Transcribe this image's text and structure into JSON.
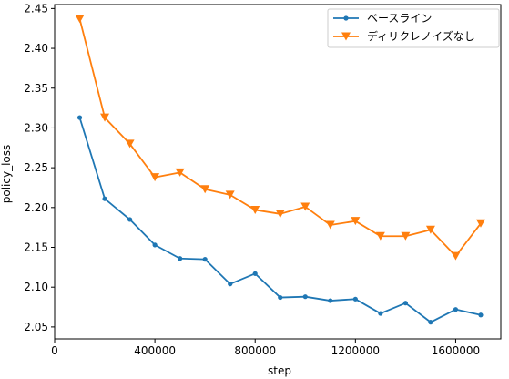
{
  "chart_data": {
    "type": "line",
    "title": "",
    "xlabel": "step",
    "ylabel": "policy_loss",
    "xlim": [
      0,
      1780000
    ],
    "ylim": [
      2.035,
      2.455
    ],
    "xticks": [
      0,
      400000,
      800000,
      1200000,
      1600000
    ],
    "xtick_labels": [
      "0",
      "400000",
      "800000",
      "1200000",
      "1600000"
    ],
    "yticks": [
      2.05,
      2.1,
      2.15,
      2.2,
      2.25,
      2.3,
      2.35,
      2.4,
      2.45
    ],
    "ytick_labels": [
      "2.05",
      "2.10",
      "2.15",
      "2.20",
      "2.25",
      "2.30",
      "2.35",
      "2.40",
      "2.45"
    ],
    "grid": false,
    "legend_position": "top-right",
    "x": [
      100000,
      200000,
      300000,
      400000,
      500000,
      600000,
      700000,
      800000,
      900000,
      1000000,
      1100000,
      1200000,
      1300000,
      1400000,
      1500000,
      1600000,
      1700000
    ],
    "series": [
      {
        "name": "ベースライン",
        "color": "#1f77b4",
        "marker": "circle",
        "values": [
          2.313,
          2.211,
          2.185,
          2.153,
          2.136,
          2.135,
          2.104,
          2.117,
          2.087,
          2.088,
          2.083,
          2.085,
          2.067,
          2.08,
          2.056,
          2.072,
          2.065
        ]
      },
      {
        "name": "ディリクレノイズなし",
        "color": "#ff7f0e",
        "marker": "triangle-down",
        "values": [
          2.437,
          2.313,
          2.28,
          2.238,
          2.244,
          2.223,
          2.216,
          2.197,
          2.192,
          2.201,
          2.178,
          2.183,
          2.164,
          2.164,
          2.172,
          2.139,
          2.18
        ]
      }
    ]
  }
}
